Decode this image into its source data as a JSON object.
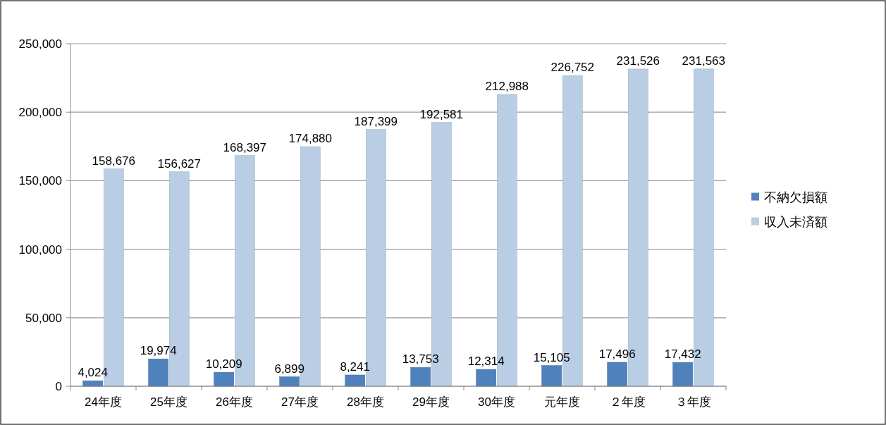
{
  "chart_data": {
    "type": "bar",
    "categories": [
      "24年度",
      "25年度",
      "26年度",
      "27年度",
      "28年度",
      "29年度",
      "30年度",
      "元年度",
      "２年度",
      "３年度"
    ],
    "series": [
      {
        "name": "不納欠損額",
        "color": "#4f81bd",
        "values": [
          4024,
          19974,
          10209,
          6899,
          8241,
          13753,
          12314,
          15105,
          17496,
          17432
        ],
        "value_labels": [
          "4,024",
          "19,974",
          "10,209",
          "6,899",
          "8,241",
          "13,753",
          "12,314",
          "15,105",
          "17,496",
          "17,432"
        ]
      },
      {
        "name": "収入未済額",
        "color": "#b9cde5",
        "values": [
          158676,
          156627,
          168397,
          174880,
          187399,
          192581,
          212988,
          226752,
          231526,
          231563
        ],
        "value_labels": [
          "158,676",
          "156,627",
          "168,397",
          "174,880",
          "187,399",
          "192,581",
          "212,988",
          "226,752",
          "231,526",
          "231,563"
        ]
      }
    ],
    "ylim": [
      0,
      250000
    ],
    "yticks": [
      {
        "value": 0,
        "label": "0"
      },
      {
        "value": 50000,
        "label": "50,000"
      },
      {
        "value": 100000,
        "label": "100,000"
      },
      {
        "value": 150000,
        "label": "150,000"
      },
      {
        "value": 200000,
        "label": "200,000"
      },
      {
        "value": 250000,
        "label": "250,000"
      }
    ],
    "grid": "y",
    "legend": "right"
  }
}
